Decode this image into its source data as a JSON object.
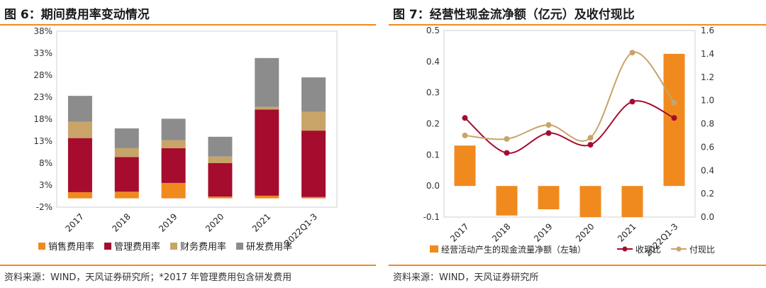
{
  "left": {
    "title": "图 6：期间费用率变动情况",
    "source": "资料来源：WIND，天风证券研究所；*2017 年管理费用包含研发费用",
    "chart_data": {
      "type": "bar",
      "stacked": true,
      "categories": [
        "2017",
        "2018",
        "2019",
        "2020",
        "2021",
        "2022Q1-3"
      ],
      "ylim": [
        -2,
        38
      ],
      "yticks": [
        -2,
        3,
        8,
        13,
        18,
        23,
        28,
        33,
        38
      ],
      "ytick_labels": [
        "-2%",
        "3%",
        "8%",
        "13%",
        "18%",
        "23%",
        "28%",
        "33%",
        "38%"
      ],
      "series": [
        {
          "name": "销售费用率",
          "color": "#F08A1E",
          "values": [
            1.4,
            1.5,
            3.5,
            0.4,
            0.6,
            0.3
          ]
        },
        {
          "name": "管理费用率",
          "color": "#A50C2E",
          "values": [
            12.3,
            7.9,
            7.9,
            7.6,
            19.6,
            15.1
          ]
        },
        {
          "name": "财务费用率",
          "color": "#C8A468",
          "values": [
            3.7,
            2.0,
            1.8,
            1.5,
            0.6,
            4.3
          ]
        },
        {
          "name": "研发费用率",
          "color": "#8C8C8C",
          "values": [
            5.9,
            4.5,
            4.9,
            4.5,
            11.1,
            7.8
          ]
        }
      ],
      "legend_position": "bottom"
    }
  },
  "right": {
    "title": "图 7：经营性现金流净额（亿元）及收付现比",
    "source": "资料来源：WIND，天风证券研究所",
    "chart_data": {
      "type": "bar+line",
      "categories": [
        "2017",
        "2018",
        "2019",
        "2020",
        "2021",
        "2022Q1-3"
      ],
      "y_left": {
        "lim": [
          -0.1,
          0.5
        ],
        "ticks": [
          -0.1,
          0.0,
          0.1,
          0.2,
          0.3,
          0.4,
          0.5
        ],
        "labels": [
          "-0.1",
          "0.0",
          "0.1",
          "0.2",
          "0.3",
          "0.4",
          "0.5"
        ]
      },
      "y_right": {
        "lim": [
          0.0,
          1.6
        ],
        "ticks": [
          0.0,
          0.2,
          0.4,
          0.6,
          0.8,
          1.0,
          1.2,
          1.4,
          1.6
        ],
        "labels": [
          "0.0",
          "0.2",
          "0.4",
          "0.6",
          "0.8",
          "1.0",
          "1.2",
          "1.4",
          "1.6"
        ]
      },
      "series": [
        {
          "name": "经营活动产生的现金流量净额（左轴）",
          "type": "bar",
          "axis": "left",
          "color": "#F08A1E",
          "values": [
            0.13,
            -0.095,
            -0.075,
            -0.1,
            -0.1,
            0.425
          ]
        },
        {
          "name": "收现比",
          "type": "line",
          "axis": "right",
          "color": "#A50C2E",
          "values": [
            0.85,
            0.55,
            0.72,
            0.62,
            0.99,
            0.85
          ]
        },
        {
          "name": "付现比",
          "type": "line",
          "axis": "right",
          "color": "#C8A468",
          "values": [
            0.7,
            0.67,
            0.79,
            0.68,
            1.41,
            0.98
          ]
        }
      ],
      "legend_position": "bottom"
    }
  }
}
